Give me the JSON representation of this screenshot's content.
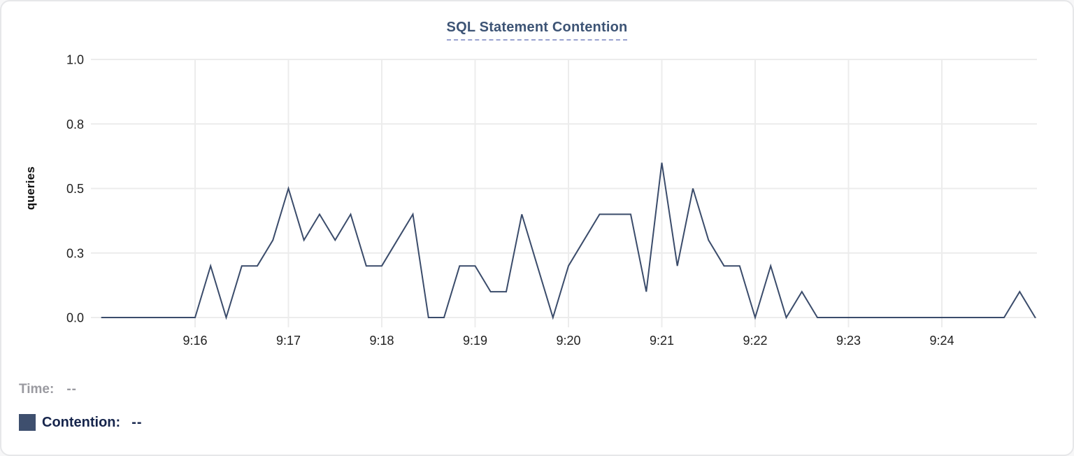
{
  "header": {
    "title": "SQL Statement Contention"
  },
  "legend": {
    "time_label": "Time:",
    "time_value": "--",
    "contention_label": "Contention:",
    "contention_value": "--"
  },
  "colors": {
    "line": "#3b4c6b",
    "swatch": "#3e4f6e",
    "title": "#3d5475",
    "underline": "#99a2cf",
    "grid": "#ececec",
    "tick_text": "#1f1f1f",
    "muted_text": "#9a9aa0",
    "dark_text": "#16254c"
  },
  "chart_data": {
    "type": "line",
    "title": "SQL Statement Contention",
    "xlabel": "",
    "ylabel": "queries",
    "ylim": [
      0,
      1.0
    ],
    "x_start": "9:15:00",
    "x_end": "9:25:00",
    "grid": true,
    "legend_position": "bottom-left",
    "y_ticks": [
      {
        "label": "1.0",
        "value": 1.0
      },
      {
        "label": "0.8",
        "value": 0.75
      },
      {
        "label": "0.5",
        "value": 0.5
      },
      {
        "label": "0.3",
        "value": 0.25
      },
      {
        "label": "0.0",
        "value": 0.0
      }
    ],
    "x_ticks": [
      "9:16",
      "9:17",
      "9:18",
      "9:19",
      "9:20",
      "9:21",
      "9:22",
      "9:23",
      "9:24"
    ],
    "series": [
      {
        "name": "Contention",
        "color": "#3b4c6b",
        "points": [
          [
            "9:15:00",
            0
          ],
          [
            "9:15:10",
            0
          ],
          [
            "9:15:20",
            0
          ],
          [
            "9:15:30",
            0
          ],
          [
            "9:15:40",
            0
          ],
          [
            "9:15:50",
            0
          ],
          [
            "9:16:00",
            0
          ],
          [
            "9:16:10",
            0.2
          ],
          [
            "9:16:20",
            0
          ],
          [
            "9:16:30",
            0.2
          ],
          [
            "9:16:40",
            0.2
          ],
          [
            "9:16:50",
            0.3
          ],
          [
            "9:17:00",
            0.5
          ],
          [
            "9:17:10",
            0.3
          ],
          [
            "9:17:20",
            0.4
          ],
          [
            "9:17:30",
            0.3
          ],
          [
            "9:17:40",
            0.4
          ],
          [
            "9:17:50",
            0.2
          ],
          [
            "9:18:00",
            0.2
          ],
          [
            "9:18:10",
            0.3
          ],
          [
            "9:18:20",
            0.4
          ],
          [
            "9:18:30",
            0
          ],
          [
            "9:18:40",
            0
          ],
          [
            "9:18:50",
            0.2
          ],
          [
            "9:19:00",
            0.2
          ],
          [
            "9:19:10",
            0.1
          ],
          [
            "9:19:20",
            0.1
          ],
          [
            "9:19:30",
            0.4
          ],
          [
            "9:19:40",
            0.2
          ],
          [
            "9:19:50",
            0
          ],
          [
            "9:20:00",
            0.2
          ],
          [
            "9:20:10",
            0.3
          ],
          [
            "9:20:20",
            0.4
          ],
          [
            "9:20:30",
            0.4
          ],
          [
            "9:20:40",
            0.4
          ],
          [
            "9:20:50",
            0.1
          ],
          [
            "9:21:00",
            0.6
          ],
          [
            "9:21:10",
            0.2
          ],
          [
            "9:21:20",
            0.5
          ],
          [
            "9:21:30",
            0.3
          ],
          [
            "9:21:40",
            0.2
          ],
          [
            "9:21:50",
            0.2
          ],
          [
            "9:22:00",
            0
          ],
          [
            "9:22:10",
            0.2
          ],
          [
            "9:22:20",
            0
          ],
          [
            "9:22:30",
            0.1
          ],
          [
            "9:22:40",
            0
          ],
          [
            "9:22:50",
            0
          ],
          [
            "9:23:00",
            0
          ],
          [
            "9:23:10",
            0
          ],
          [
            "9:23:20",
            0
          ],
          [
            "9:23:30",
            0
          ],
          [
            "9:23:40",
            0
          ],
          [
            "9:23:50",
            0
          ],
          [
            "9:24:00",
            0
          ],
          [
            "9:24:10",
            0
          ],
          [
            "9:24:20",
            0
          ],
          [
            "9:24:30",
            0
          ],
          [
            "9:24:40",
            0
          ],
          [
            "9:24:50",
            0.1
          ],
          [
            "9:25:00",
            0
          ]
        ]
      }
    ]
  }
}
